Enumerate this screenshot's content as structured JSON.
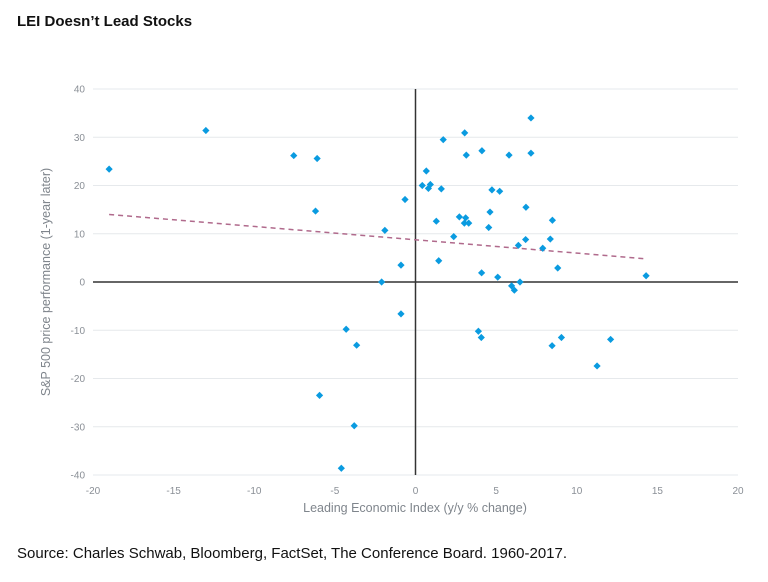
{
  "title": "LEI Doesn’t Lead Stocks",
  "source": "Source: Charles Schwab, Bloomberg, FactSet, The Conference Board. 1960-2017.",
  "chart_data": {
    "type": "scatter",
    "title": "LEI Doesn’t Lead Stocks",
    "xlabel": "Leading Economic Index (y/y % change)",
    "ylabel": "S&P 500 price performance (1-year later)",
    "xlim": [
      -20,
      20
    ],
    "ylim": [
      -40,
      40
    ],
    "xticks": [
      -20,
      -15,
      -10,
      -5,
      0,
      5,
      10,
      15,
      20
    ],
    "yticks": [
      -40,
      -30,
      -20,
      -10,
      0,
      10,
      20,
      30,
      40
    ],
    "grid": "horizontal",
    "marker_color": "#0a9be0",
    "trend_color": "#b06a8c",
    "trendline": {
      "x": [
        -19.0,
        14.3
      ],
      "y": [
        14.0,
        4.8
      ],
      "style": "dashed"
    },
    "points": [
      [
        -19.0,
        23.4
      ],
      [
        -13.0,
        31.4
      ],
      [
        -7.55,
        26.2
      ],
      [
        -6.1,
        25.6
      ],
      [
        -6.2,
        14.7
      ],
      [
        -1.9,
        10.7
      ],
      [
        -0.65,
        17.1
      ],
      [
        -0.9,
        3.5
      ],
      [
        -2.1,
        0.0
      ],
      [
        -0.9,
        -6.6
      ],
      [
        -4.3,
        -9.8
      ],
      [
        -3.65,
        -13.1
      ],
      [
        -5.95,
        -23.5
      ],
      [
        -3.8,
        -29.8
      ],
      [
        -4.6,
        -38.6
      ],
      [
        7.16,
        34.0
      ],
      [
        3.05,
        30.9
      ],
      [
        1.72,
        29.5
      ],
      [
        3.15,
        26.3
      ],
      [
        4.12,
        27.2
      ],
      [
        5.8,
        26.3
      ],
      [
        7.16,
        26.7
      ],
      [
        0.67,
        23.0
      ],
      [
        0.42,
        20.0
      ],
      [
        0.8,
        19.4
      ],
      [
        0.92,
        20.2
      ],
      [
        1.6,
        19.3
      ],
      [
        4.74,
        19.1
      ],
      [
        5.22,
        18.8
      ],
      [
        6.85,
        15.5
      ],
      [
        8.49,
        12.8
      ],
      [
        4.62,
        14.5
      ],
      [
        1.29,
        12.6
      ],
      [
        2.72,
        13.5
      ],
      [
        3.11,
        13.3
      ],
      [
        3.03,
        12.2
      ],
      [
        3.3,
        12.2
      ],
      [
        4.54,
        11.3
      ],
      [
        2.37,
        9.4
      ],
      [
        6.83,
        8.8
      ],
      [
        8.36,
        8.9
      ],
      [
        6.38,
        7.6
      ],
      [
        7.89,
        7.0
      ],
      [
        1.44,
        4.4
      ],
      [
        8.82,
        2.9
      ],
      [
        4.1,
        1.9
      ],
      [
        5.1,
        1.0
      ],
      [
        14.3,
        1.3
      ],
      [
        6.48,
        0.0
      ],
      [
        5.96,
        -0.8
      ],
      [
        6.13,
        -1.7
      ],
      [
        3.9,
        -10.2
      ],
      [
        4.08,
        -11.5
      ],
      [
        9.05,
        -11.5
      ],
      [
        8.47,
        -13.2
      ],
      [
        12.1,
        -11.9
      ],
      [
        11.26,
        -17.4
      ]
    ]
  }
}
